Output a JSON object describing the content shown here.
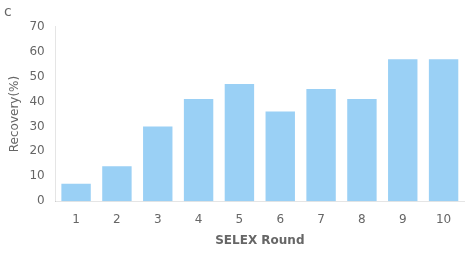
{
  "chart_data": {
    "type": "bar",
    "title": "c",
    "xlabel": "SELEX Round",
    "ylabel": "Recovery(%)",
    "categories": [
      1,
      2,
      3,
      4,
      5,
      6,
      7,
      8,
      9,
      10
    ],
    "values": [
      7,
      14,
      30,
      41,
      47,
      36,
      45,
      41,
      57,
      57
    ],
    "ylim": [
      0,
      70
    ],
    "yticks": [
      0,
      10,
      20,
      30,
      40,
      50,
      60,
      70
    ],
    "grid": false
  }
}
